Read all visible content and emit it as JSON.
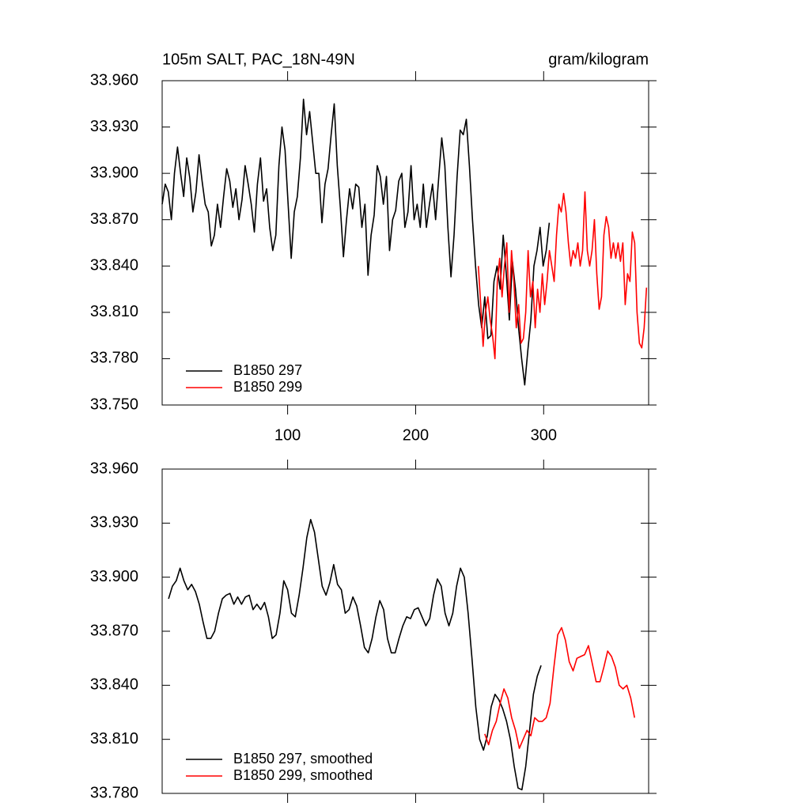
{
  "chart_data": [
    {
      "type": "line",
      "title": "105m SALT, PAC_18N-49N",
      "units": "gram/kilogram",
      "xlim": [
        2,
        382
      ],
      "xticks": [
        100,
        200,
        300
      ],
      "xtick_labels": true,
      "ylim": [
        33.75,
        33.96
      ],
      "yticks": [
        {
          "value": 33.75,
          "label": "33.750"
        },
        {
          "value": 33.78,
          "label": "33.780"
        },
        {
          "value": 33.81,
          "label": "33.810"
        },
        {
          "value": 33.84,
          "label": "33.840"
        },
        {
          "value": 33.87,
          "label": "33.870"
        },
        {
          "value": 33.9,
          "label": "33.900"
        },
        {
          "value": 33.93,
          "label": "33.930"
        },
        {
          "value": 33.96,
          "label": "33.960"
        }
      ],
      "legend": "lower left",
      "series": [
        {
          "name": "B1850 297",
          "color": "#000000",
          "x": [
            2,
            4.4,
            6.8,
            9.2,
            11.6,
            14,
            16.4,
            18.8,
            21.2,
            23.6,
            26,
            28.4,
            30.8,
            33.2,
            35.6,
            38,
            40.4,
            42.8,
            45.2,
            47.6,
            50,
            52.4,
            54.8,
            57.2,
            59.6,
            62,
            64.4,
            66.8,
            69.2,
            71.6,
            74,
            76.4,
            78.8,
            81.2,
            83.6,
            86,
            88.4,
            90.8,
            93.2,
            95.6,
            98,
            100.4,
            102.8,
            105.2,
            107.6,
            110,
            112.4,
            114.8,
            117.2,
            119.6,
            122,
            124.4,
            126.8,
            129.2,
            131.6,
            134,
            136.4,
            138.8,
            141.2,
            143.6,
            146,
            148.4,
            150.8,
            153.2,
            155.6,
            158,
            160.4,
            162.8,
            165.2,
            167.6,
            170,
            172.4,
            174.8,
            177.2,
            179.6,
            182,
            184.4,
            186.8,
            189.2,
            191.6,
            194,
            196.4,
            198.8,
            201.2,
            203.6,
            206,
            208.4,
            210.8,
            213.2,
            215.6,
            218,
            220.4,
            222.8,
            225.2,
            227.6,
            230,
            232.4,
            234.8,
            237.2,
            239.6,
            242,
            244.4,
            246.8,
            249.2,
            251.6,
            254,
            256.4,
            258.8,
            261.2,
            263.6,
            266,
            268.4,
            270.8,
            273.2,
            275.6,
            278,
            280.4,
            282.8,
            285.2,
            287.6,
            290,
            292.4,
            294.8,
            297.2,
            299.6,
            302,
            304.4
          ],
          "values": [
            33.88,
            33.893,
            33.888,
            33.87,
            33.9,
            33.917,
            33.9,
            33.885,
            33.91,
            33.897,
            33.875,
            33.888,
            33.912,
            33.895,
            33.88,
            33.875,
            33.853,
            33.86,
            33.88,
            33.865,
            33.885,
            33.903,
            33.895,
            33.878,
            33.89,
            33.87,
            33.883,
            33.905,
            33.893,
            33.88,
            33.862,
            33.893,
            33.91,
            33.882,
            33.89,
            33.865,
            33.85,
            33.86,
            33.905,
            33.93,
            33.915,
            33.88,
            33.845,
            33.875,
            33.885,
            33.91,
            33.948,
            33.925,
            33.94,
            33.92,
            33.9,
            33.9,
            33.868,
            33.893,
            33.903,
            33.925,
            33.945,
            33.905,
            33.878,
            33.846,
            33.87,
            33.89,
            33.877,
            33.893,
            33.891,
            33.865,
            33.88,
            33.834,
            33.86,
            33.873,
            33.905,
            33.898,
            33.88,
            33.898,
            33.85,
            33.87,
            33.876,
            33.895,
            33.9,
            33.865,
            33.875,
            33.905,
            33.87,
            33.88,
            33.865,
            33.893,
            33.865,
            33.88,
            33.893,
            33.87,
            33.897,
            33.923,
            33.905,
            33.865,
            33.833,
            33.86,
            33.898,
            33.928,
            33.925,
            33.935,
            33.905,
            33.87,
            33.84,
            33.815,
            33.8,
            33.82,
            33.793,
            33.795,
            33.83,
            33.84,
            33.825,
            33.86,
            33.835,
            33.805,
            33.843,
            33.825,
            33.8,
            33.78,
            33.763,
            33.785,
            33.805,
            33.84,
            33.85,
            33.865,
            33.84,
            33.85,
            33.868
          ]
        },
        {
          "name": "B1850 299",
          "color": "#ff0000",
          "x": [
            249,
            250.85,
            252.7,
            254.55,
            256.4,
            258.25,
            260.1,
            261.95,
            263.8,
            265.65,
            267.5,
            269.35,
            271.2,
            273.05,
            274.9,
            276.75,
            278.6,
            280.45,
            282.3,
            284.15,
            286,
            287.85,
            289.7,
            291.55,
            293.4,
            295.25,
            297.1,
            298.95,
            300.8,
            302.65,
            304.5,
            306.35,
            308.2,
            310.05,
            311.9,
            313.75,
            315.6,
            317.45,
            319.3,
            321.15,
            323,
            324.85,
            326.7,
            328.55,
            330.4,
            332.25,
            334.1,
            335.95,
            337.8,
            339.65,
            341.5,
            343.35,
            345.2,
            347.05,
            348.9,
            350.75,
            352.6,
            354.45,
            356.3,
            358.15,
            360,
            361.85,
            363.7,
            365.55,
            367.4,
            369.25,
            371.1,
            372.95,
            374.8,
            376.65,
            378.5,
            380.35
          ],
          "values": [
            33.84,
            33.815,
            33.788,
            33.81,
            33.82,
            33.805,
            33.795,
            33.78,
            33.83,
            33.845,
            33.82,
            33.84,
            33.855,
            33.81,
            33.85,
            33.83,
            33.8,
            33.815,
            33.79,
            33.793,
            33.81,
            33.85,
            33.82,
            33.83,
            33.8,
            33.825,
            33.81,
            33.835,
            33.815,
            33.83,
            33.85,
            33.84,
            33.83,
            33.86,
            33.88,
            33.875,
            33.887,
            33.875,
            33.855,
            33.84,
            33.85,
            33.845,
            33.855,
            33.84,
            33.85,
            33.888,
            33.85,
            33.84,
            33.85,
            33.87,
            33.835,
            33.812,
            33.82,
            33.86,
            33.872,
            33.865,
            33.845,
            33.855,
            33.845,
            33.855,
            33.843,
            33.855,
            33.815,
            33.835,
            33.83,
            33.862,
            33.855,
            33.81,
            33.79,
            33.787,
            33.8,
            33.826
          ]
        }
      ]
    },
    {
      "type": "line",
      "xlim": [
        2,
        382
      ],
      "xticks": [
        100,
        200,
        300
      ],
      "xtick_labels": false,
      "ylim": [
        33.78,
        33.96
      ],
      "yticks": [
        {
          "value": 33.78,
          "label": "33.780"
        },
        {
          "value": 33.81,
          "label": "33.810"
        },
        {
          "value": 33.84,
          "label": "33.840"
        },
        {
          "value": 33.87,
          "label": "33.870"
        },
        {
          "value": 33.9,
          "label": "33.900"
        },
        {
          "value": 33.93,
          "label": "33.930"
        },
        {
          "value": 33.96,
          "label": "33.960"
        }
      ],
      "legend": "lower left",
      "series": [
        {
          "name": "B1850 297, smoothed",
          "color": "#000000",
          "x": [
            7,
            10,
            13,
            16,
            19,
            22,
            25,
            28,
            31,
            34,
            37,
            40,
            43,
            46,
            49,
            52,
            55,
            58,
            61,
            64,
            67,
            70,
            73,
            76,
            79,
            82,
            85,
            88,
            91,
            94,
            97,
            100,
            103,
            106,
            109,
            112,
            115,
            118,
            121,
            124,
            127,
            130,
            133,
            136,
            139,
            142,
            145,
            148,
            151,
            154,
            157,
            160,
            163,
            166,
            169,
            172,
            175,
            178,
            181,
            184,
            187,
            190,
            193,
            196,
            199,
            202,
            205,
            208,
            211,
            214,
            217,
            220,
            223,
            226,
            229,
            232,
            235,
            238,
            241,
            244,
            247,
            250,
            253,
            256,
            259,
            262,
            265,
            268,
            271,
            274,
            277,
            280,
            283,
            286,
            289,
            292,
            295,
            298
          ],
          "values": [
            33.888,
            33.895,
            33.898,
            33.905,
            33.898,
            33.893,
            33.896,
            33.892,
            33.885,
            33.875,
            33.866,
            33.866,
            33.87,
            33.88,
            33.888,
            33.89,
            33.891,
            33.885,
            33.889,
            33.885,
            33.889,
            33.89,
            33.882,
            33.885,
            33.882,
            33.886,
            33.878,
            33.866,
            33.868,
            33.88,
            33.898,
            33.893,
            33.88,
            33.878,
            33.89,
            33.905,
            33.922,
            33.932,
            33.925,
            33.91,
            33.895,
            33.89,
            33.897,
            33.907,
            33.896,
            33.893,
            33.88,
            33.882,
            33.889,
            33.884,
            33.873,
            33.861,
            33.858,
            33.866,
            33.878,
            33.887,
            33.882,
            33.866,
            33.858,
            33.858,
            33.866,
            33.873,
            33.878,
            33.877,
            33.882,
            33.883,
            33.878,
            33.873,
            33.877,
            33.89,
            33.899,
            33.895,
            33.88,
            33.873,
            33.88,
            33.895,
            33.905,
            33.9,
            33.88,
            33.855,
            33.828,
            33.81,
            33.804,
            33.812,
            33.828,
            33.835,
            33.832,
            33.827,
            33.82,
            33.81,
            33.795,
            33.783,
            33.782,
            33.795,
            33.815,
            33.835,
            33.845,
            33.851
          ]
        },
        {
          "name": "B1850 299, smoothed",
          "color": "#ff0000",
          "x": [
            254,
            257,
            260,
            263,
            266,
            269,
            272,
            275,
            278,
            281,
            284,
            287,
            290,
            293,
            296,
            299,
            302,
            305,
            308,
            311,
            314,
            317,
            320,
            323,
            326,
            329,
            332,
            335,
            338,
            341,
            344,
            347,
            350,
            353,
            356,
            359,
            362,
            365,
            368,
            371
          ],
          "values": [
            33.813,
            33.807,
            33.815,
            33.82,
            33.83,
            33.838,
            33.833,
            33.822,
            33.815,
            33.805,
            33.81,
            33.815,
            33.812,
            33.822,
            33.82,
            33.82,
            33.822,
            33.83,
            33.85,
            33.868,
            33.872,
            33.865,
            33.853,
            33.848,
            33.855,
            33.856,
            33.857,
            33.862,
            33.852,
            33.842,
            33.842,
            33.85,
            33.859,
            33.856,
            33.85,
            33.84,
            33.838,
            33.84,
            33.833,
            33.822
          ]
        }
      ]
    }
  ]
}
